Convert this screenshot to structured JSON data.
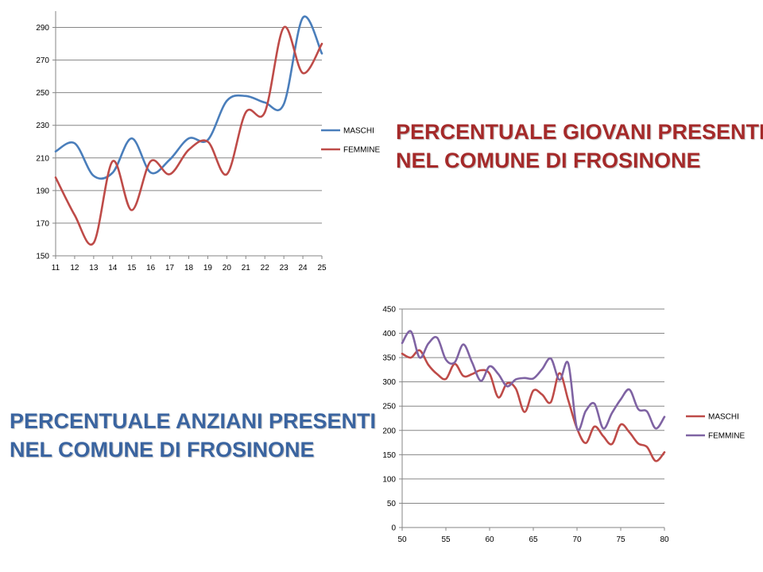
{
  "headings": {
    "giovani": {
      "line1": "PERCENTUALE GIOVANI PRESENTI",
      "line2": "NEL COMUNE DI FROSINONE",
      "color": "#a52a2a"
    },
    "anziani": {
      "line1": "PERCENTUALE ANZIANI PRESENTI",
      "line2": "NEL COMUNE DI FROSINONE",
      "color": "#3a64a0"
    }
  },
  "chart_data": [
    {
      "type": "line",
      "smooth": true,
      "x": [
        11,
        12,
        13,
        14,
        15,
        16,
        17,
        18,
        19,
        20,
        21,
        22,
        23,
        24,
        25
      ],
      "xlim": [
        11,
        25
      ],
      "ylim": [
        150,
        300
      ],
      "yticks": [
        150,
        170,
        190,
        210,
        230,
        250,
        270,
        290
      ],
      "grid": true,
      "legend_position": "right",
      "series": [
        {
          "name": "MASCHI",
          "color": "#4a7ebb",
          "values": [
            214,
            219,
            199,
            201,
            222,
            201,
            209,
            222,
            221,
            245,
            248,
            244,
            243,
            296,
            274
          ]
        },
        {
          "name": "FEMMINE",
          "color": "#be4b48",
          "values": [
            198,
            175,
            158,
            208,
            178,
            208,
            200,
            215,
            220,
            200,
            238,
            238,
            290,
            262,
            280
          ]
        }
      ]
    },
    {
      "type": "line",
      "smooth": true,
      "x": [
        50,
        51,
        52,
        53,
        54,
        55,
        56,
        57,
        58,
        59,
        60,
        61,
        62,
        63,
        64,
        65,
        66,
        67,
        68,
        69,
        70,
        71,
        72,
        73,
        74,
        75,
        76,
        77,
        78,
        79,
        80
      ],
      "xlim": [
        50,
        80
      ],
      "xticks": [
        50,
        55,
        60,
        65,
        70,
        75,
        80
      ],
      "ylim": [
        0,
        450
      ],
      "yticks": [
        0,
        50,
        100,
        150,
        200,
        250,
        300,
        350,
        400,
        450
      ],
      "grid": true,
      "legend_position": "right",
      "series": [
        {
          "name": "MASCHI",
          "color": "#be4b48",
          "values": [
            358,
            350,
            365,
            335,
            316,
            306,
            337,
            312,
            316,
            324,
            317,
            268,
            297,
            286,
            238,
            282,
            274,
            258,
            318,
            262,
            204,
            174,
            208,
            188,
            172,
            212,
            196,
            173,
            166,
            137,
            155
          ]
        },
        {
          "name": "FEMMINE",
          "color": "#7f63a3",
          "values": [
            380,
            404,
            350,
            379,
            391,
            346,
            340,
            377,
            340,
            302,
            332,
            316,
            291,
            305,
            308,
            307,
            326,
            348,
            304,
            338,
            204,
            240,
            255,
            204,
            236,
            264,
            284,
            244,
            239,
            204,
            228
          ]
        }
      ]
    }
  ]
}
